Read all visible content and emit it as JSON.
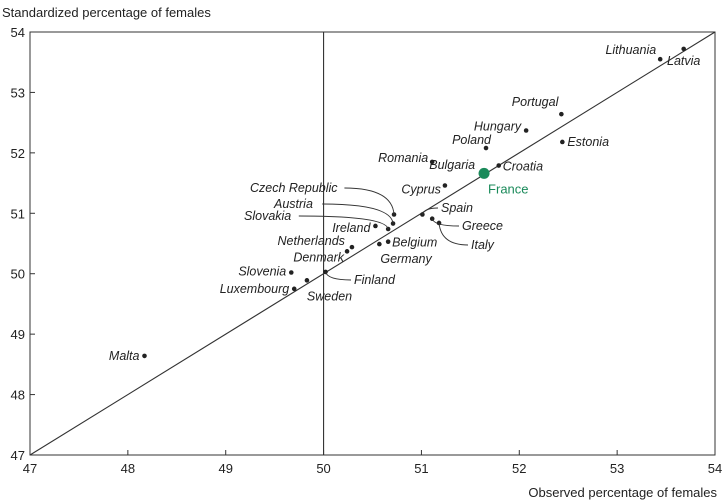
{
  "chart_data": {
    "type": "scatter",
    "title": "",
    "xlabel": "Observed percentage of females",
    "ylabel": "Standardized percentage of females",
    "xlim": [
      47,
      54
    ],
    "ylim": [
      47,
      54
    ],
    "xticks": [
      "47",
      "48",
      "49",
      "50",
      "51",
      "52",
      "53",
      "54"
    ],
    "yticks": [
      "47",
      "48",
      "49",
      "50",
      "51",
      "52",
      "53",
      "54"
    ],
    "reference_lines": [
      "diagonal y = x",
      "vertical x = 50"
    ],
    "highlight_color": "#1a8a5a",
    "point_color": "#222222",
    "points": [
      {
        "label": "Lithuania",
        "x": 53.44,
        "y": 53.55
      },
      {
        "label": "Latvia",
        "x": 53.68,
        "y": 53.72
      },
      {
        "label": "Portugal",
        "x": 52.43,
        "y": 52.64
      },
      {
        "label": "Hungary",
        "x": 52.07,
        "y": 52.37
      },
      {
        "label": "Estonia",
        "x": 52.44,
        "y": 52.18
      },
      {
        "label": "Poland",
        "x": 51.66,
        "y": 52.08
      },
      {
        "label": "Romania",
        "x": 51.11,
        "y": 51.85
      },
      {
        "label": "Croatia",
        "x": 51.79,
        "y": 51.79
      },
      {
        "label": "Bulgaria",
        "x": 51.61,
        "y": 51.65
      },
      {
        "label": "France",
        "x": 51.64,
        "y": 51.66,
        "highlight": true
      },
      {
        "label": "Cyprus",
        "x": 51.24,
        "y": 51.46
      },
      {
        "label": "Czech Republic",
        "x": 50.72,
        "y": 50.98
      },
      {
        "label": "Austria",
        "x": 50.71,
        "y": 50.83
      },
      {
        "label": "Slovakia",
        "x": 50.66,
        "y": 50.74
      },
      {
        "label": "Ireland",
        "x": 50.53,
        "y": 50.79
      },
      {
        "label": "Spain",
        "x": 51.01,
        "y": 50.98
      },
      {
        "label": "Greece",
        "x": 51.11,
        "y": 50.91
      },
      {
        "label": "Italy",
        "x": 51.18,
        "y": 50.84
      },
      {
        "label": "Belgium",
        "x": 50.66,
        "y": 50.53
      },
      {
        "label": "Germany",
        "x": 50.57,
        "y": 50.49
      },
      {
        "label": "Netherlands",
        "x": 50.29,
        "y": 50.44
      },
      {
        "label": "Denmark",
        "x": 50.24,
        "y": 50.37
      },
      {
        "label": "Finland",
        "x": 50.02,
        "y": 50.03
      },
      {
        "label": "Slovenia",
        "x": 49.67,
        "y": 50.02
      },
      {
        "label": "Sweden",
        "x": 49.83,
        "y": 49.89
      },
      {
        "label": "Luxembourg",
        "x": 49.7,
        "y": 49.75
      },
      {
        "label": "Malta",
        "x": 48.17,
        "y": 48.64
      }
    ]
  }
}
